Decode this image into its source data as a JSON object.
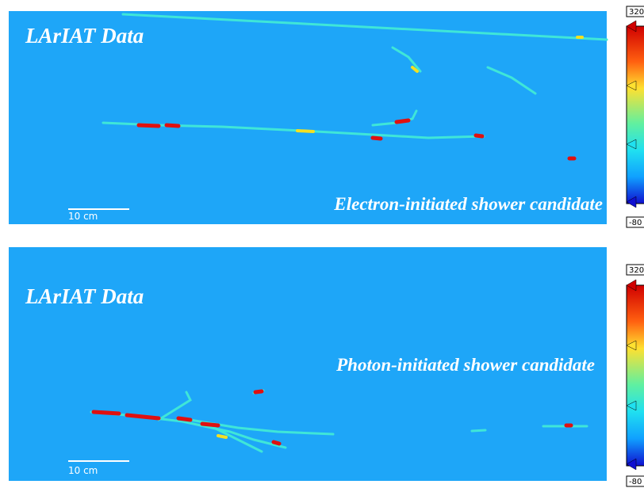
{
  "panels": [
    {
      "title": "LArIAT Data",
      "caption": "Electron-initiated shower candidate",
      "scale_label": "10 cm",
      "colorbar_max": "320",
      "colorbar_min": "-80"
    },
    {
      "title": "LArIAT Data",
      "caption": "Photon-initiated shower candidate",
      "scale_label": "10 cm",
      "colorbar_max": "320",
      "colorbar_min": "-80"
    }
  ]
}
